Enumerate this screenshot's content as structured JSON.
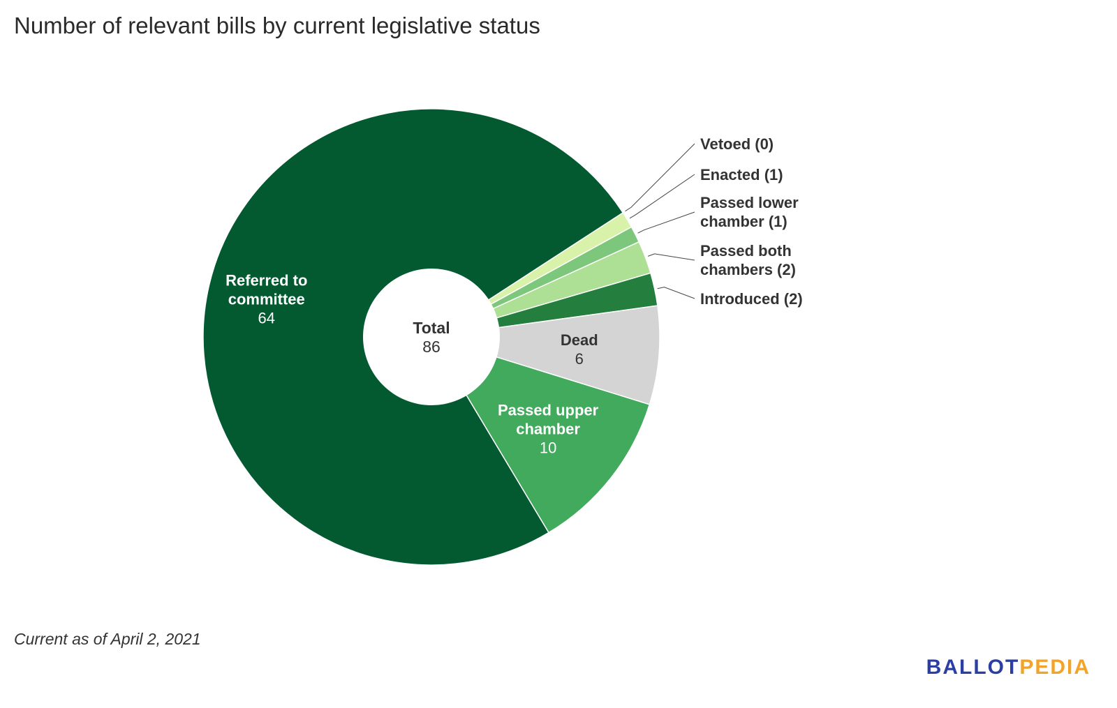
{
  "title": "Number of relevant bills by current legislative status",
  "footnote": "Current as of April 2, 2021",
  "logo": {
    "part1": "BALLOT",
    "part2": "PEDIA"
  },
  "colors": {
    "referred": "#035a30",
    "passed_upper": "#41aa5c",
    "dead": "#d4d4d4",
    "introduced": "#247f3e",
    "passed_both": "#addf94",
    "passed_lower": "#7dc77c",
    "enacted": "#d9f2a9",
    "vetoed": "#f4fbd8",
    "logo_blue": "#2b3fa3",
    "logo_orange": "#f1a32a"
  },
  "center": {
    "label": "Total",
    "value": "86"
  },
  "chart_data": {
    "type": "pie",
    "variant": "donut",
    "title": "Number of relevant bills by current legislative status",
    "slices": [
      {
        "name": "Vetoed",
        "value": 0,
        "label_lines": [
          "Vetoed (0)"
        ],
        "label_position": "outside"
      },
      {
        "name": "Enacted",
        "value": 1,
        "label_lines": [
          "Enacted (1)"
        ],
        "label_position": "outside"
      },
      {
        "name": "Passed lower chamber",
        "value": 1,
        "label_lines": [
          "Passed lower",
          "chamber (1)"
        ],
        "label_position": "outside"
      },
      {
        "name": "Passed both chambers",
        "value": 2,
        "label_lines": [
          "Passed both",
          "chambers (2)"
        ],
        "label_position": "outside"
      },
      {
        "name": "Introduced",
        "value": 2,
        "label_lines": [
          "Introduced (2)"
        ],
        "label_position": "outside"
      },
      {
        "name": "Dead",
        "value": 6,
        "label_lines": [
          "Dead"
        ],
        "value_label": "6",
        "label_position": "inside"
      },
      {
        "name": "Passed upper chamber",
        "value": 10,
        "label_lines": [
          "Passed upper",
          "chamber"
        ],
        "value_label": "10",
        "label_position": "inside"
      },
      {
        "name": "Referred to committee",
        "value": 64,
        "label_lines": [
          "Referred to",
          "committee"
        ],
        "value_label": "64",
        "label_position": "inside"
      }
    ],
    "total": 86
  }
}
